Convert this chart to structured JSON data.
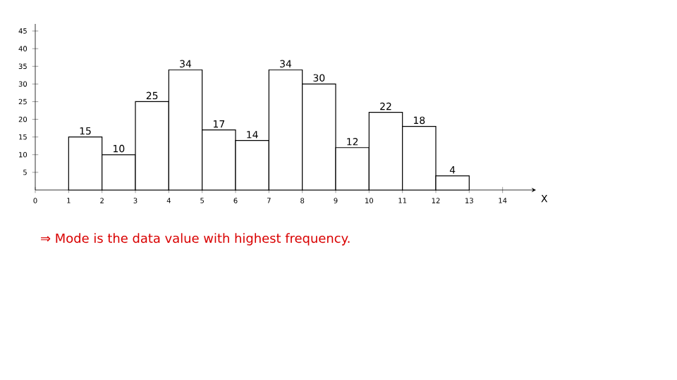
{
  "chart_data": {
    "type": "histogram",
    "bins": [
      1,
      2,
      3,
      4,
      5,
      6,
      7,
      8,
      9,
      10,
      11,
      12,
      13
    ],
    "values": [
      15,
      10,
      25,
      34,
      17,
      14,
      34,
      30,
      12,
      22,
      18,
      4
    ],
    "color": "#000000",
    "data_labels": true,
    "xlabel": "X",
    "xlim": [
      0,
      15
    ],
    "ylim": [
      0,
      47
    ],
    "xticks": [
      0,
      1,
      2,
      3,
      4,
      5,
      6,
      7,
      8,
      9,
      10,
      11,
      12,
      13,
      14
    ],
    "yticks": [
      5,
      10,
      15,
      20,
      25,
      30,
      35,
      40,
      45
    ],
    "annotations": [
      "⇒  Mode is the data value with highest frequency."
    ]
  }
}
